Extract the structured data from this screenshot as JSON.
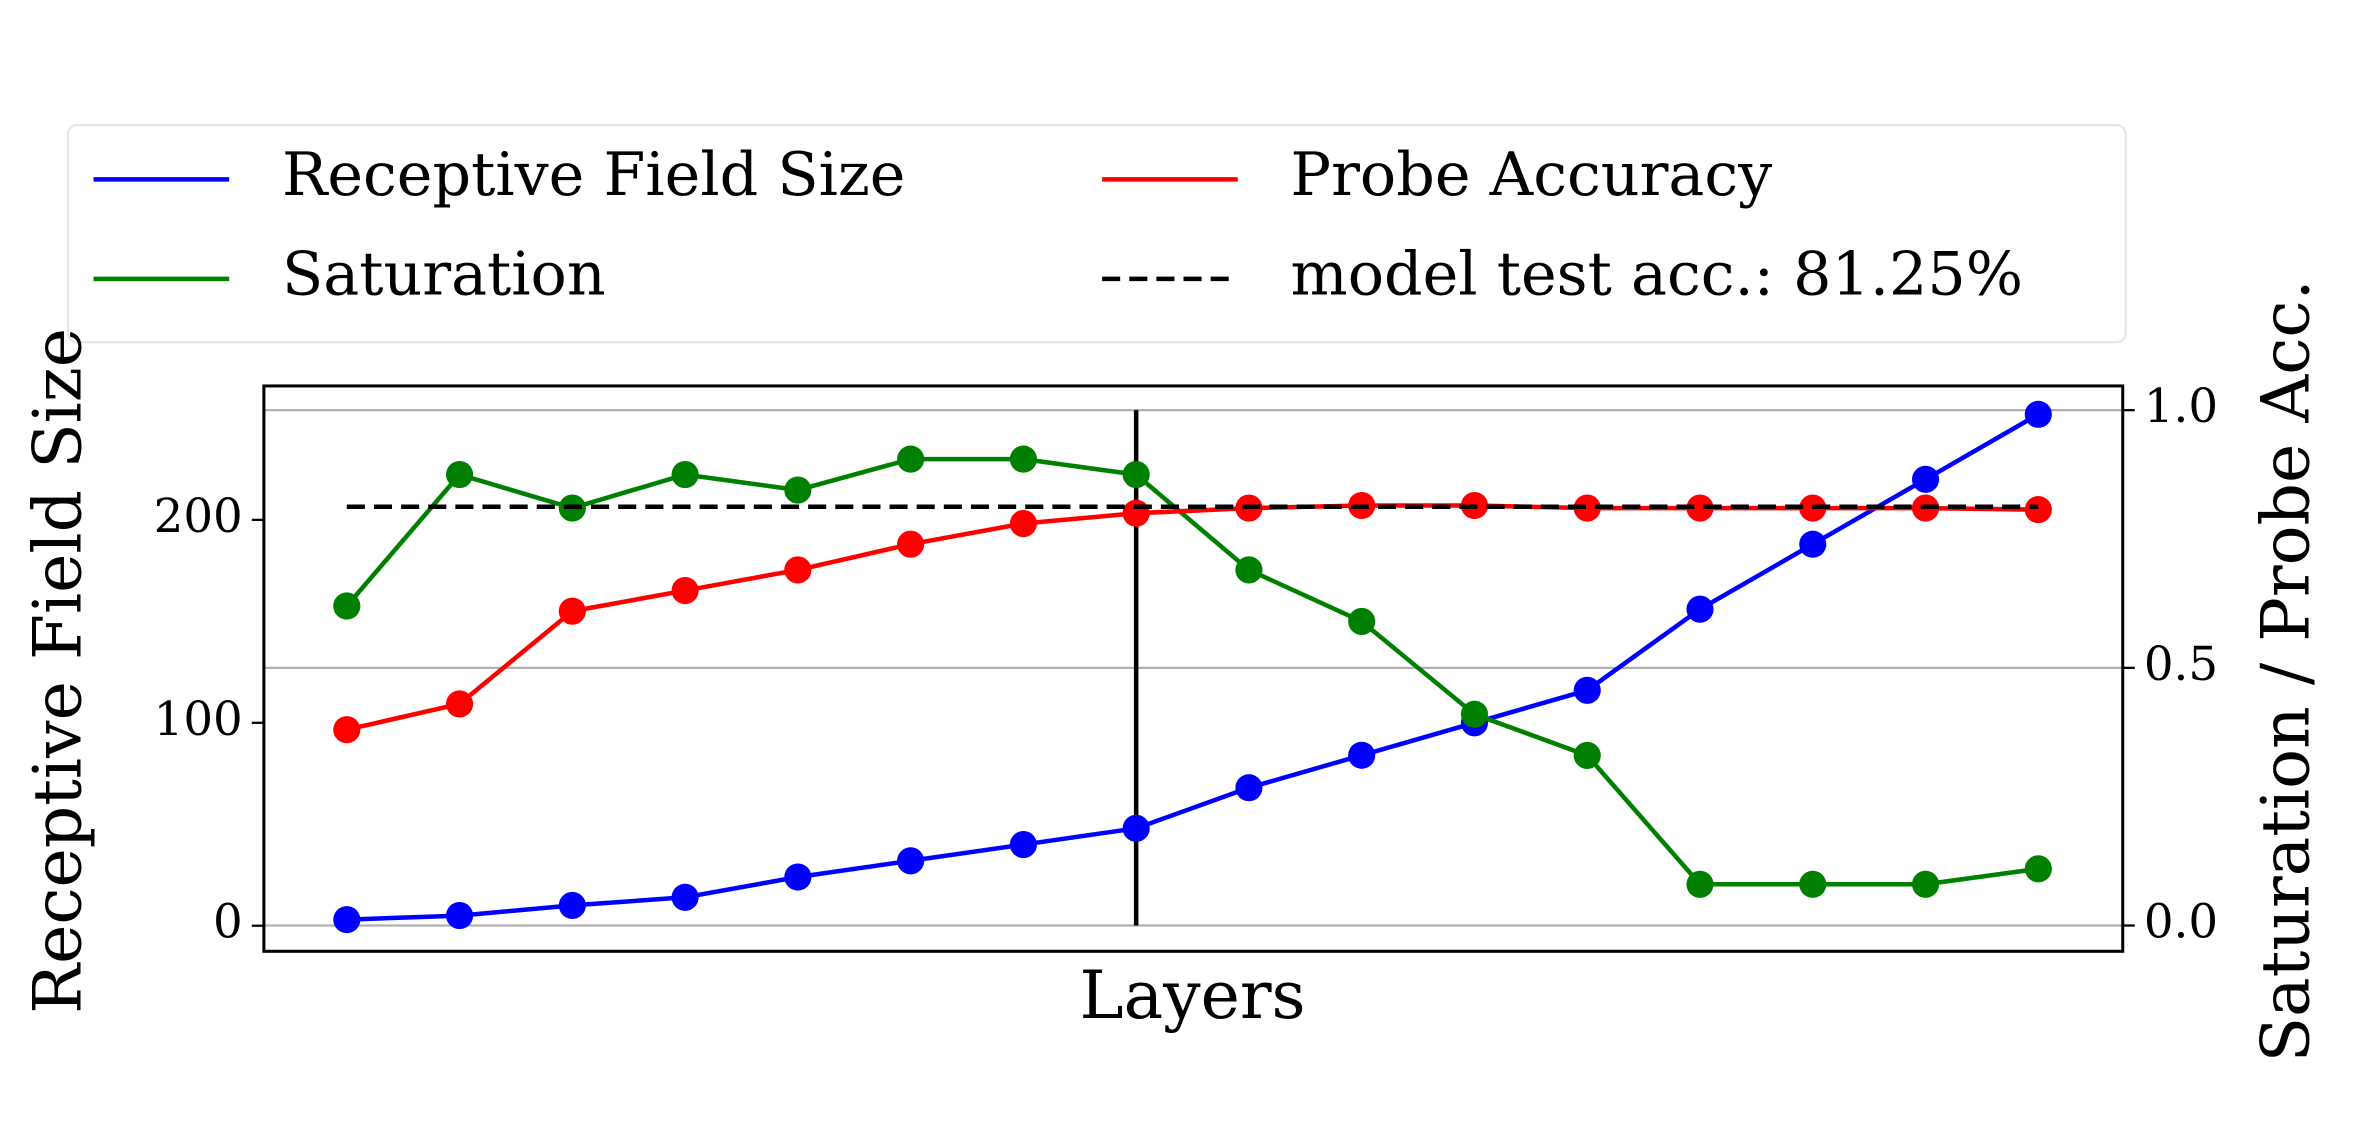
{
  "chart_data": {
    "type": "line",
    "x_label": "Layers",
    "y_label": "Receptive Field Size",
    "y2_label": "Saturation / Probe Acc.",
    "categories": [
      null,
      null,
      null,
      null,
      null,
      null,
      null,
      null,
      null,
      null,
      null,
      null,
      null,
      null,
      null,
      null
    ],
    "series": [
      {
        "name": "Receptive Field Size",
        "color": "#0000ff",
        "axis": "y",
        "values": [
          3,
          5,
          10,
          14,
          24,
          32,
          40,
          48,
          68,
          84,
          100,
          116,
          156,
          188,
          220,
          252
        ]
      },
      {
        "name": "Saturation",
        "color": "#008000",
        "axis": "y2",
        "values": [
          0.62,
          0.875,
          0.81,
          0.875,
          0.845,
          0.905,
          0.905,
          0.875,
          0.69,
          0.59,
          0.41,
          0.33,
          0.08,
          0.08,
          0.08,
          0.11
        ]
      },
      {
        "name": "Probe Accuracy",
        "color": "#ff0000",
        "axis": "y2",
        "values": [
          0.38,
          0.43,
          0.61,
          0.65,
          0.69,
          0.74,
          0.78,
          0.8,
          0.81,
          0.815,
          0.815,
          0.81,
          0.81,
          0.81,
          0.81,
          0.807
        ]
      }
    ],
    "reference": {
      "name": "model test acc.: 81.25%",
      "value": 0.8125,
      "axis": "y2",
      "color": "#000000"
    },
    "vline": 7,
    "ylim": [
      -12.6,
      266
    ],
    "yticks": [
      0,
      100,
      200
    ],
    "y2lim": [
      -0.05,
      1.047
    ],
    "y2ticks": [
      {
        "value": 0,
        "label": "0.0"
      },
      0.5,
      {
        "value": 1,
        "label": "1.0"
      }
    ],
    "grid": true,
    "legend": "top"
  }
}
